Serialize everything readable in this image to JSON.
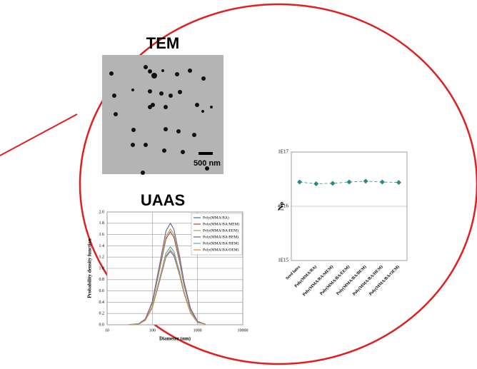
{
  "labels": {
    "tem": "TEM",
    "uaas": "UAAS",
    "scale_bar": "500 nm"
  },
  "chart_data": [
    {
      "type": "line",
      "x_label": "Diameter (nm)",
      "y_label": "Probability density function",
      "xscale": "log",
      "xlim": [
        10,
        10000
      ],
      "xticks": [
        10,
        100,
        1000,
        10000
      ],
      "ylim": [
        0,
        2.0
      ],
      "yticks": [
        {
          "value": 0,
          "label": "0.0"
        },
        0.2,
        0.4,
        0.6,
        0.8,
        {
          "value": 1,
          "label": "1.0"
        },
        1.2,
        1.4,
        1.6,
        1.8,
        {
          "value": 2,
          "label": "2.0"
        }
      ],
      "grid": true,
      "legend": "top-right",
      "x": [
        30,
        50,
        70,
        100,
        150,
        200,
        250,
        300,
        400,
        500,
        700,
        1000,
        1500
      ],
      "series": [
        {
          "name": "Poly(MMA/BA)",
          "color": "#4a6fb5",
          "values": [
            0,
            0.01,
            0.08,
            0.3,
            0.82,
            1.2,
            1.3,
            1.22,
            0.88,
            0.56,
            0.21,
            0.04,
            0.01
          ]
        },
        {
          "name": "Poly(MMA/BA/MEM)",
          "color": "#b5403c",
          "values": [
            0,
            0.02,
            0.1,
            0.38,
            1.04,
            1.52,
            1.65,
            1.55,
            1.12,
            0.71,
            0.26,
            0.06,
            0.01
          ]
        },
        {
          "name": "Poly(MMA/BA/EEM)",
          "color": "#8fb04a",
          "values": [
            0,
            0.02,
            0.1,
            0.39,
            1.07,
            1.56,
            1.7,
            1.6,
            1.16,
            0.73,
            0.27,
            0.06,
            0.01
          ]
        },
        {
          "name": "Poly(MMA/BA/BEM)",
          "color": "#7a5a9e",
          "values": [
            0,
            0.02,
            0.1,
            0.41,
            1.13,
            1.66,
            1.8,
            1.69,
            1.22,
            0.77,
            0.29,
            0.06,
            0.01
          ]
        },
        {
          "name": "Poly(MMA/BA/HEM)",
          "color": "#3fa9c7",
          "values": [
            0,
            0.02,
            0.08,
            0.32,
            0.87,
            1.27,
            1.38,
            1.3,
            0.94,
            0.59,
            0.22,
            0.05,
            0.01
          ]
        },
        {
          "name": "Poly(MMA/BA/OEM)",
          "color": "#e08a2c",
          "values": [
            0,
            0.01,
            0.08,
            0.31,
            0.84,
            1.22,
            1.33,
            1.25,
            0.9,
            0.57,
            0.21,
            0.05,
            0.01
          ]
        }
      ]
    },
    {
      "type": "line",
      "y_label": "Nₚ",
      "yscale": "log",
      "ylim": [
        1000000000000000.0,
        1e+17
      ],
      "yticks": [
        {
          "value": 1000000000000000.0,
          "label": "1E15"
        },
        {
          "value": 1e+16,
          "label": "1E16"
        },
        {
          "value": 1e+17,
          "label": "1E17"
        }
      ],
      "grid": true,
      "marker": "diamond",
      "line_style": "dashed",
      "categories": [
        "Seed latex",
        "Poly(MMA/BA)",
        "Poly(MMA/BA/MEM)",
        "Poly(MMA/BA/EEM)",
        "Poly(MMA/BA/BEM)",
        "Poly(MMA/BA/HEM)",
        "Poly(MMA/BA/OEM)"
      ],
      "series": [
        {
          "name": null,
          "color": "#2a8a86",
          "values": [
            2.8e+16,
            2.6e+16,
            2.65e+16,
            2.8e+16,
            2.9e+16,
            2.8e+16,
            2.75e+16
          ]
        }
      ]
    }
  ]
}
